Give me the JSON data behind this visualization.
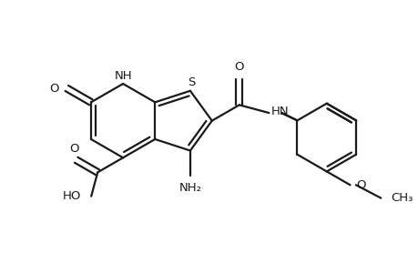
{
  "bg_color": "#ffffff",
  "line_color": "#1a1a1a",
  "line_width": 1.6,
  "font_size": 9.5,
  "fig_width": 4.6,
  "fig_height": 3.0,
  "xlim": [
    0,
    9.2
  ],
  "ylim": [
    0,
    6.0
  ]
}
